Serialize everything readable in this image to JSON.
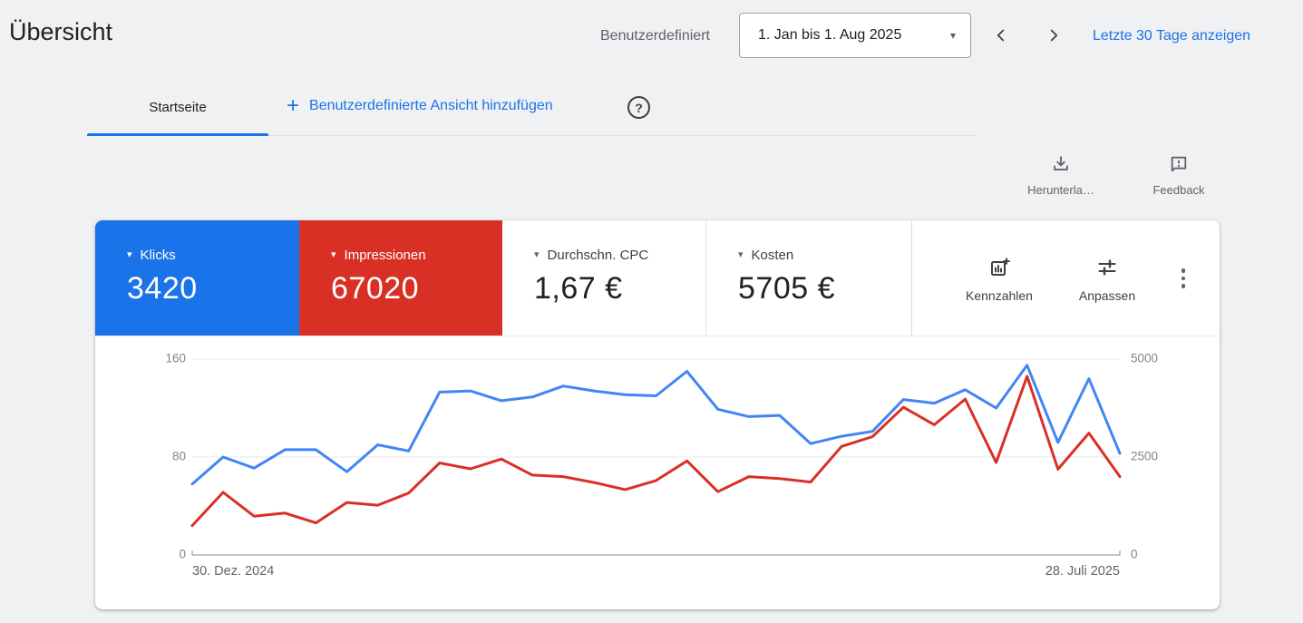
{
  "page": {
    "title": "Übersicht"
  },
  "header": {
    "preset_label": "Benutzerdefiniert",
    "date_range": "1. Jan bis 1. Aug 2025",
    "quick_range_link": "Letzte 30 Tage anzeigen"
  },
  "tabs": {
    "home_tab": "Startseite",
    "add_view_label": "Benutzerdefinierte Ansicht hinzufügen",
    "help_glyph": "?"
  },
  "toolbar": {
    "download_label": "Herunterla…",
    "feedback_label": "Feedback"
  },
  "scorecards": [
    {
      "label": "Klicks",
      "value": "3420",
      "bg": "#1a73e8",
      "text": "#ffffff"
    },
    {
      "label": "Impressionen",
      "value": "67020",
      "bg": "#d93025",
      "text": "#ffffff"
    },
    {
      "label": "Durchschn. CPC",
      "value": "1,67 €",
      "bg": "#ffffff",
      "text": "#202124"
    },
    {
      "label": "Kosten",
      "value": "5705 €",
      "bg": "#ffffff",
      "text": "#202124"
    }
  ],
  "chart_tools": {
    "metrics_label": "Kennzahlen",
    "customize_label": "Anpassen"
  },
  "colors": {
    "accent_blue": "#1a73e8",
    "accent_red": "#d93025",
    "grid": "#e8eaed",
    "axis": "#9aa0a6"
  },
  "chart_data": {
    "type": "line",
    "x_unit": "week",
    "x_points": 31,
    "x_tick_labels": [
      "30. Dez. 2024",
      "28. Juli 2025"
    ],
    "left_axis": {
      "ticks": [
        0,
        80,
        160
      ],
      "range": [
        0,
        160
      ]
    },
    "right_axis": {
      "ticks": [
        0,
        2500,
        5000
      ],
      "range": [
        0,
        5000
      ]
    },
    "grid": true,
    "legend": "none",
    "series": [
      {
        "name": "Klicks",
        "axis": "left",
        "color": "#4285f4",
        "values": [
          58,
          80,
          71,
          86,
          86,
          68,
          90,
          85,
          133,
          134,
          126,
          129,
          138,
          134,
          131,
          130,
          150,
          119,
          113,
          114,
          91,
          97,
          101,
          127,
          124,
          135,
          120,
          155,
          92,
          144,
          83
        ]
      },
      {
        "name": "Impressionen",
        "axis": "right",
        "color": "#d93025",
        "values": [
          750,
          1600,
          990,
          1070,
          820,
          1340,
          1270,
          1580,
          2350,
          2200,
          2450,
          2040,
          2000,
          1850,
          1670,
          1900,
          2400,
          1615,
          2000,
          1950,
          1860,
          2770,
          3020,
          3770,
          3325,
          3980,
          2360,
          4560,
          2190,
          3110,
          2000
        ]
      }
    ]
  }
}
